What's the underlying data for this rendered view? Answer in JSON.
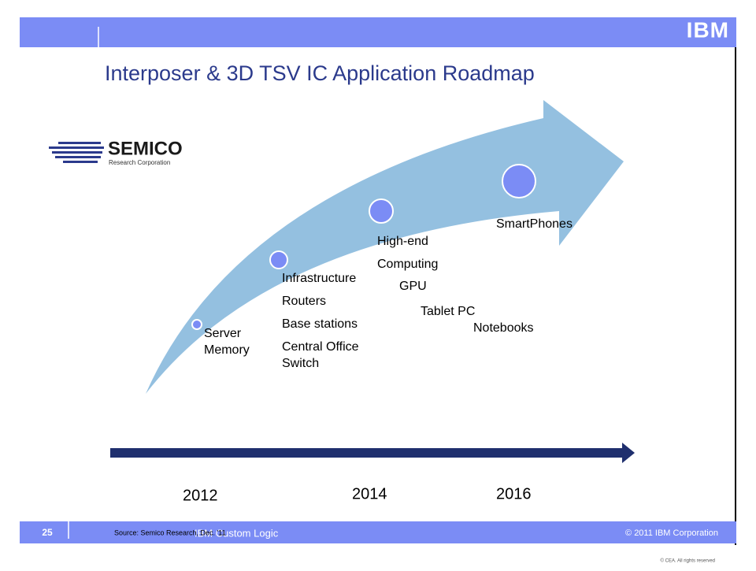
{
  "header": {
    "brand": "IBM",
    "title": "Interposer & 3D TSV IC Application Roadmap"
  },
  "logo": {
    "name": "SEMICO",
    "subtitle": "Research Corporation"
  },
  "roadmap": {
    "nodes": [
      {
        "labels": [
          "Server",
          "Memory"
        ]
      },
      {
        "labels": [
          "Infrastructure",
          "Routers",
          "Base stations",
          "Central Office",
          "Switch"
        ]
      },
      {
        "labels": [
          "High-end",
          "Computing",
          "GPU",
          "Tablet PC",
          "Notebooks"
        ]
      },
      {
        "labels": [
          "SmartPhones"
        ]
      }
    ]
  },
  "timeline": {
    "years": [
      "2012",
      "2014",
      "2016"
    ]
  },
  "footer": {
    "page": "25",
    "source": "Source: Semico Research, Dec. '11",
    "product": "IBM Custom Logic",
    "copyright": "© 2011 IBM Corporation",
    "cea": "© CEA. All rights reserved"
  }
}
